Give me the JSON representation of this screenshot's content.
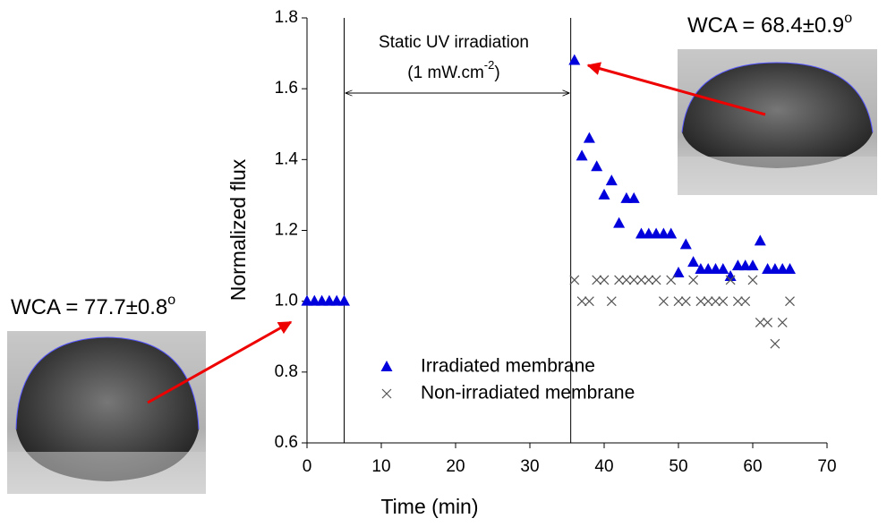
{
  "chart_data": {
    "type": "scatter",
    "xlabel": "Time (min)",
    "ylabel": "Normalized flux",
    "xlim": [
      0,
      70
    ],
    "ylim": [
      0.6,
      1.8
    ],
    "xticks": [
      0,
      10,
      20,
      30,
      40,
      50,
      60,
      70
    ],
    "yticks": [
      {
        "value": 0.6,
        "label": "0.6"
      },
      {
        "value": 0.8,
        "label": "0.8"
      },
      {
        "value": 1.0,
        "label": "1.0"
      },
      {
        "value": 1.2,
        "label": "1.2"
      },
      {
        "value": 1.4,
        "label": "1.4"
      },
      {
        "value": 1.6,
        "label": "1.6"
      },
      {
        "value": 1.8,
        "label": "1.8"
      }
    ],
    "uv_period": [
      5,
      35.5
    ],
    "annotation": {
      "line1": "Static UV irradiation",
      "line2": "(1 mW.cm",
      "sup": "-2",
      "close": ")"
    },
    "wca_left": {
      "text": "WCA = 77.7±0.8",
      "degree": "o"
    },
    "wca_right": {
      "text": "WCA = 68.4±0.9",
      "degree": "o"
    },
    "series": [
      {
        "name": "Irradiated membrane",
        "color": "#0000dd",
        "marker": "triangle",
        "x": [
          0,
          1,
          2,
          3,
          4,
          5,
          36,
          37,
          38,
          39,
          40,
          41,
          42,
          43,
          44,
          45,
          46,
          47,
          48,
          49,
          50,
          51,
          52,
          53,
          54,
          55,
          56,
          57,
          58,
          59,
          60,
          61,
          62,
          63,
          64,
          65
        ],
        "values": [
          1.0,
          1.0,
          1.0,
          1.0,
          1.0,
          1.0,
          1.68,
          1.41,
          1.46,
          1.38,
          1.3,
          1.34,
          1.22,
          1.29,
          1.29,
          1.19,
          1.19,
          1.19,
          1.19,
          1.19,
          1.08,
          1.16,
          1.11,
          1.09,
          1.09,
          1.09,
          1.09,
          1.07,
          1.1,
          1.1,
          1.1,
          1.17,
          1.09,
          1.09,
          1.09,
          1.09
        ]
      },
      {
        "name": "Non-irradiated membrane",
        "color": "#555555",
        "marker": "cross",
        "x": [
          36,
          37,
          38,
          39,
          40,
          41,
          42,
          43,
          44,
          45,
          46,
          47,
          48,
          49,
          50,
          51,
          52,
          53,
          54,
          55,
          56,
          57,
          58,
          59,
          60,
          61,
          62,
          63,
          64,
          65
        ],
        "values": [
          1.06,
          1.0,
          1.0,
          1.06,
          1.06,
          1.0,
          1.06,
          1.06,
          1.06,
          1.06,
          1.06,
          1.06,
          1.0,
          1.06,
          1.0,
          1.0,
          1.06,
          1.0,
          1.0,
          1.0,
          1.0,
          1.06,
          1.0,
          1.0,
          1.06,
          0.94,
          0.94,
          0.88,
          0.94,
          1.0
        ]
      }
    ]
  }
}
